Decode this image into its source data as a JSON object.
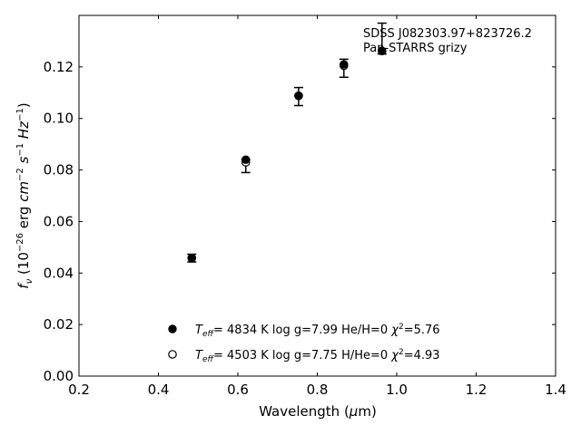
{
  "chart_data": {
    "type": "scatter",
    "xlabel": "Wavelength (μm)",
    "ylabel": "f_ν (10⁻²⁶ erg cm⁻² s⁻¹ Hz⁻¹)",
    "xlim": [
      0.2,
      1.4
    ],
    "ylim": [
      0.0,
      0.14
    ],
    "x_ticks": [
      0.2,
      0.4,
      0.6,
      0.8,
      1.0,
      1.2,
      1.4
    ],
    "x_tick_labels": [
      "0.2",
      "0.4",
      "0.6",
      "0.8",
      "1.0",
      "1.2",
      "1.4"
    ],
    "y_ticks": [
      0.0,
      0.02,
      0.04,
      0.06,
      0.08,
      0.1,
      0.12
    ],
    "y_tick_labels": [
      "0.00",
      "0.02",
      "0.04",
      "0.06",
      "0.08",
      "0.10",
      "0.12"
    ],
    "annotation": [
      "SDSS J082303.97+823726.2",
      "Pan-STARRS grizy"
    ],
    "grid": false,
    "legend_position": "bottom-center",
    "observed": [
      {
        "x": 0.484,
        "y": 0.0458,
        "yerr": 0.0015
      },
      {
        "x": 0.62,
        "y": 0.0815,
        "yerr": 0.0025
      },
      {
        "x": 0.753,
        "y": 0.1085,
        "yerr": 0.0035
      },
      {
        "x": 0.867,
        "y": 0.1195,
        "yerr": 0.0035
      },
      {
        "x": 0.963,
        "y": 0.131,
        "yerr": 0.006
      }
    ],
    "series": [
      {
        "name": "T_eff= 4834 K log g=7.99 He/H=0 χ²=5.76",
        "marker": "filled-circle",
        "color": "#000000",
        "x": [
          0.484,
          0.62,
          0.753,
          0.867,
          0.963
        ],
        "y": [
          0.0458,
          0.084,
          0.1088,
          0.121,
          0.1262
        ]
      },
      {
        "name": "T_eff= 4503 K log g=7.75 H/He=0 χ²=4.93",
        "marker": "open-circle",
        "color": "#000000",
        "x": [
          0.484,
          0.62,
          0.753,
          0.867,
          0.963
        ],
        "y": [
          0.0458,
          0.083,
          0.1088,
          0.1205,
          0.1262
        ]
      }
    ],
    "legend": [
      {
        "marker": "filled-circle",
        "teff": "4834 K",
        "logg": "log g=7.99",
        "comp": "He/H=0",
        "chi2": "=5.76"
      },
      {
        "marker": "open-circle",
        "teff": "4503 K",
        "logg": "log g=7.75",
        "comp": "H/He=0",
        "chi2": "=4.93"
      }
    ]
  }
}
